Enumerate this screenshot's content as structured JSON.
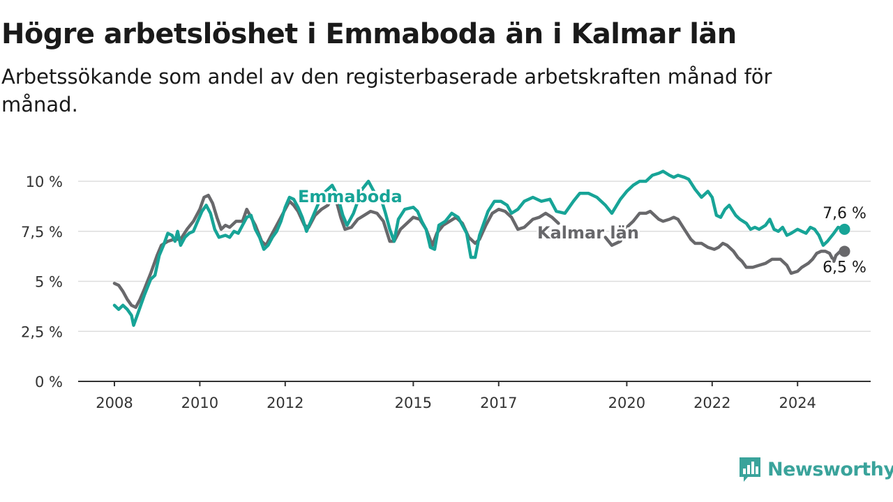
{
  "chart_data": {
    "type": "line",
    "title": "Högre arbetslöshet i Emmaboda än i Kalmar län",
    "subtitle": "Arbetssökande som andel av den registerbaserade arbetskraften månad för månad.",
    "xlabel": "",
    "ylabel": "",
    "ylim": [
      0,
      10.5
    ],
    "yticks": [
      0,
      2.5,
      5,
      7.5,
      10
    ],
    "ytick_labels": [
      "0 %",
      "2,5 %",
      "5 %",
      "7,5 %",
      "10 %"
    ],
    "xticks": [
      2008,
      2010,
      2012,
      2015,
      2017,
      2020,
      2022,
      2024
    ],
    "xtick_labels": [
      "2008",
      "2010",
      "2012",
      "2015",
      "2017",
      "2020",
      "2022",
      "2024"
    ],
    "grid": true,
    "legend": "direct labels on lines",
    "series": [
      {
        "name": "Emmaboda",
        "color": "#17a497",
        "end_label": "7,6 %",
        "points": [
          [
            2008.0,
            3.8
          ],
          [
            2008.1,
            3.6
          ],
          [
            2008.2,
            3.8
          ],
          [
            2008.3,
            3.6
          ],
          [
            2008.4,
            3.3
          ],
          [
            2008.45,
            2.8
          ],
          [
            2008.55,
            3.4
          ],
          [
            2008.7,
            4.3
          ],
          [
            2008.85,
            5.1
          ],
          [
            2008.95,
            5.3
          ],
          [
            2009.05,
            6.3
          ],
          [
            2009.15,
            6.8
          ],
          [
            2009.25,
            7.4
          ],
          [
            2009.35,
            7.3
          ],
          [
            2009.42,
            7.0
          ],
          [
            2009.48,
            7.5
          ],
          [
            2009.55,
            6.8
          ],
          [
            2009.65,
            7.2
          ],
          [
            2009.75,
            7.4
          ],
          [
            2009.85,
            7.5
          ],
          [
            2009.95,
            8.0
          ],
          [
            2010.05,
            8.5
          ],
          [
            2010.15,
            8.8
          ],
          [
            2010.25,
            8.4
          ],
          [
            2010.35,
            7.6
          ],
          [
            2010.45,
            7.2
          ],
          [
            2010.6,
            7.3
          ],
          [
            2010.7,
            7.2
          ],
          [
            2010.8,
            7.5
          ],
          [
            2010.9,
            7.4
          ],
          [
            2011.0,
            7.8
          ],
          [
            2011.1,
            8.2
          ],
          [
            2011.2,
            8.3
          ],
          [
            2011.3,
            7.6
          ],
          [
            2011.4,
            7.2
          ],
          [
            2011.5,
            6.6
          ],
          [
            2011.6,
            6.8
          ],
          [
            2011.7,
            7.2
          ],
          [
            2011.8,
            7.5
          ],
          [
            2011.9,
            8.0
          ],
          [
            2012.0,
            8.7
          ],
          [
            2012.1,
            9.2
          ],
          [
            2012.2,
            9.1
          ],
          [
            2012.3,
            8.7
          ],
          [
            2012.4,
            8.2
          ],
          [
            2012.5,
            7.5
          ],
          [
            2012.6,
            8.0
          ],
          [
            2012.7,
            8.5
          ],
          [
            2012.8,
            9.0
          ],
          [
            2012.9,
            9.4
          ],
          [
            2013.0,
            9.6
          ],
          [
            2013.1,
            9.8
          ],
          [
            2013.15,
            9.6
          ],
          [
            2013.25,
            9.1
          ],
          [
            2013.35,
            8.3
          ],
          [
            2013.45,
            7.8
          ],
          [
            2013.6,
            8.4
          ],
          [
            2013.8,
            9.6
          ],
          [
            2013.95,
            10.0
          ],
          [
            2014.1,
            9.4
          ],
          [
            2014.25,
            9.1
          ],
          [
            2014.35,
            8.4
          ],
          [
            2014.45,
            7.6
          ],
          [
            2014.55,
            7.0
          ],
          [
            2014.65,
            8.1
          ],
          [
            2014.8,
            8.6
          ],
          [
            2015.0,
            8.7
          ],
          [
            2015.1,
            8.5
          ],
          [
            2015.2,
            8.0
          ],
          [
            2015.3,
            7.6
          ],
          [
            2015.4,
            6.7
          ],
          [
            2015.5,
            6.6
          ],
          [
            2015.6,
            7.8
          ],
          [
            2015.75,
            8.0
          ],
          [
            2015.9,
            8.4
          ],
          [
            2016.05,
            8.2
          ],
          [
            2016.15,
            7.8
          ],
          [
            2016.25,
            7.4
          ],
          [
            2016.35,
            6.2
          ],
          [
            2016.45,
            6.2
          ],
          [
            2016.55,
            7.3
          ],
          [
            2016.75,
            8.5
          ],
          [
            2016.9,
            9.0
          ],
          [
            2017.05,
            9.0
          ],
          [
            2017.2,
            8.8
          ],
          [
            2017.3,
            8.4
          ],
          [
            2017.45,
            8.6
          ],
          [
            2017.6,
            9.0
          ],
          [
            2017.8,
            9.2
          ],
          [
            2018.0,
            9.0
          ],
          [
            2018.2,
            9.1
          ],
          [
            2018.35,
            8.5
          ],
          [
            2018.55,
            8.4
          ],
          [
            2018.75,
            9.0
          ],
          [
            2018.9,
            9.4
          ],
          [
            2019.1,
            9.4
          ],
          [
            2019.3,
            9.2
          ],
          [
            2019.5,
            8.8
          ],
          [
            2019.65,
            8.4
          ],
          [
            2019.85,
            9.1
          ],
          [
            2020.0,
            9.5
          ],
          [
            2020.15,
            9.8
          ],
          [
            2020.3,
            10.0
          ],
          [
            2020.45,
            10.0
          ],
          [
            2020.6,
            10.3
          ],
          [
            2020.75,
            10.4
          ],
          [
            2020.85,
            10.5
          ],
          [
            2021.0,
            10.3
          ],
          [
            2021.1,
            10.2
          ],
          [
            2021.2,
            10.3
          ],
          [
            2021.35,
            10.2
          ],
          [
            2021.45,
            10.1
          ],
          [
            2021.6,
            9.6
          ],
          [
            2021.75,
            9.2
          ],
          [
            2021.9,
            9.5
          ],
          [
            2022.0,
            9.2
          ],
          [
            2022.1,
            8.3
          ],
          [
            2022.2,
            8.2
          ],
          [
            2022.3,
            8.6
          ],
          [
            2022.4,
            8.8
          ],
          [
            2022.55,
            8.3
          ],
          [
            2022.65,
            8.1
          ],
          [
            2022.8,
            7.9
          ],
          [
            2022.9,
            7.6
          ],
          [
            2023.0,
            7.7
          ],
          [
            2023.1,
            7.6
          ],
          [
            2023.25,
            7.8
          ],
          [
            2023.35,
            8.1
          ],
          [
            2023.45,
            7.6
          ],
          [
            2023.55,
            7.5
          ],
          [
            2023.65,
            7.7
          ],
          [
            2023.75,
            7.3
          ],
          [
            2023.85,
            7.4
          ],
          [
            2024.0,
            7.6
          ],
          [
            2024.1,
            7.5
          ],
          [
            2024.2,
            7.4
          ],
          [
            2024.3,
            7.7
          ],
          [
            2024.4,
            7.6
          ],
          [
            2024.5,
            7.3
          ],
          [
            2024.6,
            6.8
          ],
          [
            2024.7,
            7.0
          ],
          [
            2024.85,
            7.4
          ],
          [
            2024.95,
            7.7
          ],
          [
            2025.1,
            7.6
          ]
        ]
      },
      {
        "name": "Kalmar län",
        "color": "#68686b",
        "end_label": "6,5 %",
        "points": [
          [
            2008.0,
            4.9
          ],
          [
            2008.1,
            4.8
          ],
          [
            2008.2,
            4.5
          ],
          [
            2008.3,
            4.1
          ],
          [
            2008.4,
            3.8
          ],
          [
            2008.5,
            3.7
          ],
          [
            2008.6,
            4.1
          ],
          [
            2008.7,
            4.6
          ],
          [
            2008.85,
            5.4
          ],
          [
            2009.0,
            6.3
          ],
          [
            2009.1,
            6.8
          ],
          [
            2009.25,
            7.0
          ],
          [
            2009.4,
            7.1
          ],
          [
            2009.55,
            7.1
          ],
          [
            2009.7,
            7.6
          ],
          [
            2009.85,
            8.0
          ],
          [
            2010.0,
            8.6
          ],
          [
            2010.1,
            9.2
          ],
          [
            2010.2,
            9.3
          ],
          [
            2010.3,
            8.9
          ],
          [
            2010.4,
            8.2
          ],
          [
            2010.5,
            7.6
          ],
          [
            2010.6,
            7.8
          ],
          [
            2010.7,
            7.7
          ],
          [
            2010.85,
            8.0
          ],
          [
            2011.0,
            8.0
          ],
          [
            2011.1,
            8.6
          ],
          [
            2011.2,
            8.2
          ],
          [
            2011.3,
            7.8
          ],
          [
            2011.45,
            7.0
          ],
          [
            2011.55,
            6.8
          ],
          [
            2011.7,
            7.4
          ],
          [
            2011.85,
            8.0
          ],
          [
            2012.0,
            8.6
          ],
          [
            2012.1,
            9.0
          ],
          [
            2012.2,
            8.8
          ],
          [
            2012.3,
            8.5
          ],
          [
            2012.45,
            7.8
          ],
          [
            2012.55,
            7.7
          ],
          [
            2012.7,
            8.3
          ],
          [
            2012.85,
            8.6
          ],
          [
            2013.0,
            8.8
          ],
          [
            2013.1,
            9.2
          ],
          [
            2013.2,
            9.0
          ],
          [
            2013.3,
            8.2
          ],
          [
            2013.4,
            7.6
          ],
          [
            2013.55,
            7.7
          ],
          [
            2013.7,
            8.1
          ],
          [
            2013.85,
            8.3
          ],
          [
            2014.0,
            8.5
          ],
          [
            2014.15,
            8.4
          ],
          [
            2014.3,
            8.0
          ],
          [
            2014.45,
            7.0
          ],
          [
            2014.55,
            7.0
          ],
          [
            2014.7,
            7.6
          ],
          [
            2014.85,
            7.9
          ],
          [
            2015.0,
            8.2
          ],
          [
            2015.15,
            8.1
          ],
          [
            2015.3,
            7.6
          ],
          [
            2015.45,
            6.8
          ],
          [
            2015.55,
            7.4
          ],
          [
            2015.7,
            7.8
          ],
          [
            2015.85,
            8.0
          ],
          [
            2016.0,
            8.2
          ],
          [
            2016.15,
            7.9
          ],
          [
            2016.3,
            7.2
          ],
          [
            2016.45,
            6.9
          ],
          [
            2016.55,
            7.1
          ],
          [
            2016.7,
            7.8
          ],
          [
            2016.85,
            8.4
          ],
          [
            2017.0,
            8.6
          ],
          [
            2017.15,
            8.5
          ],
          [
            2017.3,
            8.2
          ],
          [
            2017.45,
            7.6
          ],
          [
            2017.6,
            7.7
          ],
          [
            2017.8,
            8.1
          ],
          [
            2017.95,
            8.2
          ],
          [
            2018.1,
            8.4
          ],
          [
            2018.25,
            8.2
          ],
          [
            2018.4,
            7.9
          ],
          [
            2019.5,
            7.2
          ],
          [
            2019.65,
            6.8
          ],
          [
            2019.85,
            7.0
          ],
          [
            2020.0,
            7.7
          ],
          [
            2020.15,
            8.0
          ],
          [
            2020.3,
            8.4
          ],
          [
            2020.45,
            8.4
          ],
          [
            2020.55,
            8.5
          ],
          [
            2020.65,
            8.3
          ],
          [
            2020.75,
            8.1
          ],
          [
            2020.85,
            8.0
          ],
          [
            2021.0,
            8.1
          ],
          [
            2021.1,
            8.2
          ],
          [
            2021.2,
            8.1
          ],
          [
            2021.35,
            7.6
          ],
          [
            2021.5,
            7.1
          ],
          [
            2021.6,
            6.9
          ],
          [
            2021.75,
            6.9
          ],
          [
            2021.9,
            6.7
          ],
          [
            2022.05,
            6.6
          ],
          [
            2022.15,
            6.7
          ],
          [
            2022.25,
            6.9
          ],
          [
            2022.35,
            6.8
          ],
          [
            2022.5,
            6.5
          ],
          [
            2022.6,
            6.2
          ],
          [
            2022.7,
            6.0
          ],
          [
            2022.8,
            5.7
          ],
          [
            2022.95,
            5.7
          ],
          [
            2023.1,
            5.8
          ],
          [
            2023.25,
            5.9
          ],
          [
            2023.4,
            6.1
          ],
          [
            2023.6,
            6.1
          ],
          [
            2023.75,
            5.8
          ],
          [
            2023.85,
            5.4
          ],
          [
            2024.0,
            5.5
          ],
          [
            2024.1,
            5.7
          ],
          [
            2024.25,
            5.9
          ],
          [
            2024.35,
            6.1
          ],
          [
            2024.45,
            6.4
          ],
          [
            2024.55,
            6.5
          ],
          [
            2024.65,
            6.5
          ],
          [
            2024.75,
            6.4
          ],
          [
            2024.85,
            6.0
          ],
          [
            2024.9,
            6.3
          ],
          [
            2025.0,
            6.5
          ],
          [
            2025.1,
            6.5
          ]
        ]
      }
    ]
  },
  "source": {
    "logo_text": "Newsworthy",
    "logo_icon": "bar-chart-speech-bubble-icon"
  }
}
